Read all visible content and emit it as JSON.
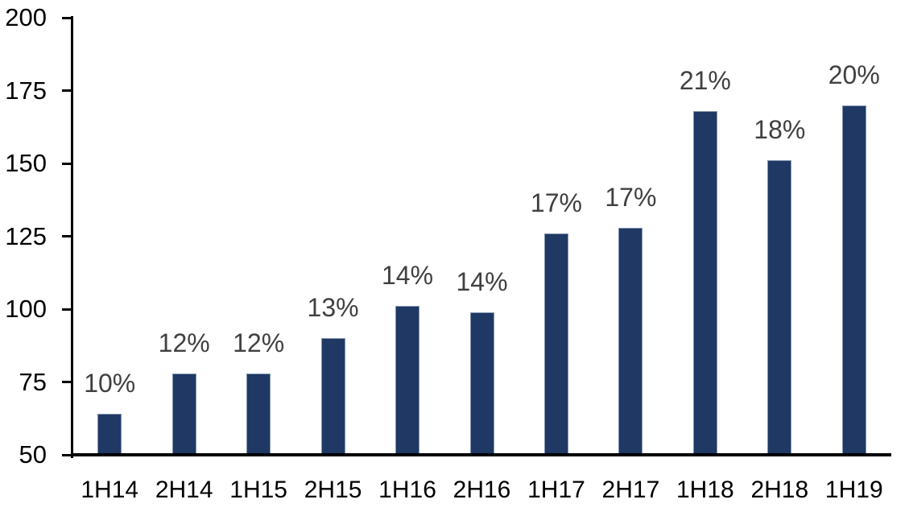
{
  "chart_data": {
    "type": "bar",
    "title": "",
    "xlabel": "",
    "ylabel": "",
    "categories": [
      "1H14",
      "2H14",
      "1H15",
      "2H15",
      "1H16",
      "2H16",
      "1H17",
      "2H17",
      "1H18",
      "2H18",
      "1H19"
    ],
    "values": [
      64,
      78,
      78,
      90,
      101,
      99,
      126,
      128,
      168,
      151,
      170
    ],
    "bar_labels": [
      "10%",
      "12%",
      "12%",
      "13%",
      "14%",
      "14%",
      "17%",
      "17%",
      "21%",
      "18%",
      "20%"
    ],
    "ylim": [
      50,
      200
    ],
    "yticks": [
      50,
      75,
      100,
      125,
      150,
      175,
      200
    ],
    "grid": false,
    "legend": "none",
    "colors": {
      "bar_fill": "#1F3864",
      "bar_border": "#8496B0",
      "data_label": "#404040",
      "axis_text": "#000000",
      "axis_line": "#000000"
    }
  }
}
